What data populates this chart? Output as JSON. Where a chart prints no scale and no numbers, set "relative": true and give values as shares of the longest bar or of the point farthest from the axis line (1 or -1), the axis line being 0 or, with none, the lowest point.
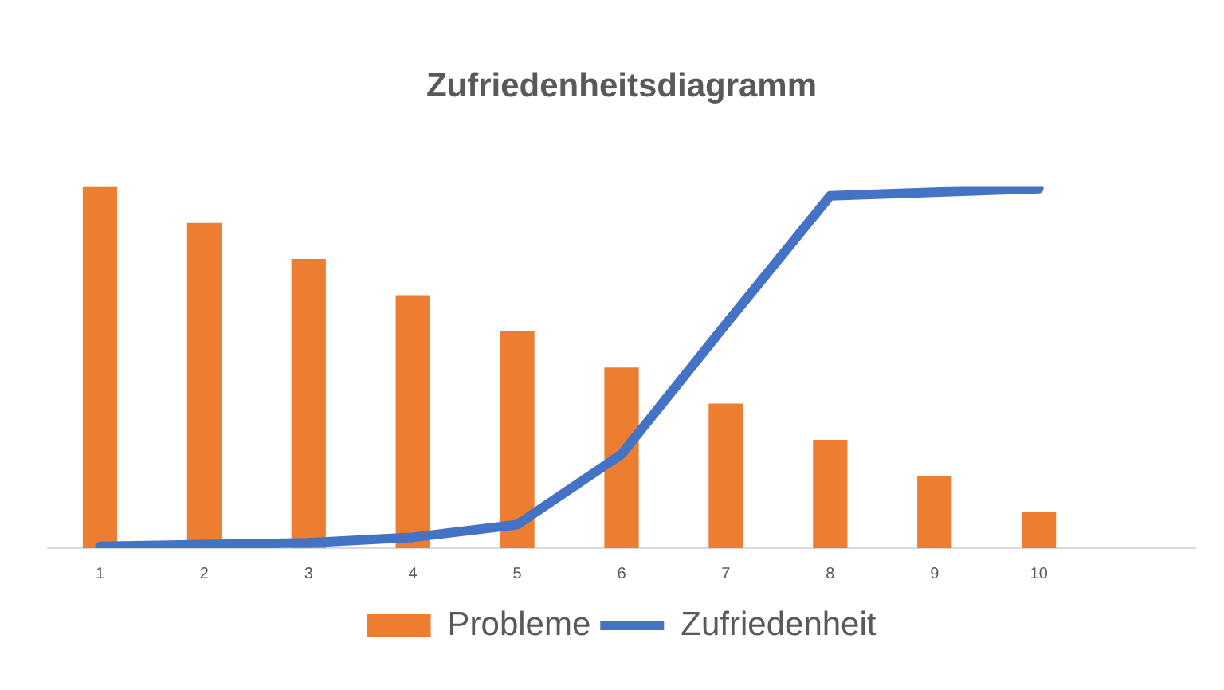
{
  "chart_data": {
    "type": "bar",
    "title": "Zufriedenheitsdiagramm",
    "relative": true,
    "legend": "bottom",
    "grid": false,
    "tick_labels": "x",
    "categories": [
      "1",
      "2",
      "3",
      "4",
      "5",
      "6",
      "7",
      "8",
      "9",
      "10",
      null
    ],
    "series": [
      {
        "name": "Probleme",
        "color": "#ed7d31",
        "values": [
          1,
          0.9,
          0.8,
          0.7,
          0.6,
          0.5,
          0.4,
          0.3,
          0.2,
          0.1,
          null
        ]
      },
      {
        "name": "Zufriedenheit",
        "type": "line",
        "color": "#4472c4",
        "marker": "none",
        "line_style": "solid",
        "values": [
          0.005,
          0.01,
          0.015,
          0.03,
          0.065,
          0.26,
          0.62,
          0.975,
          0.985,
          0.995,
          null
        ]
      }
    ]
  }
}
